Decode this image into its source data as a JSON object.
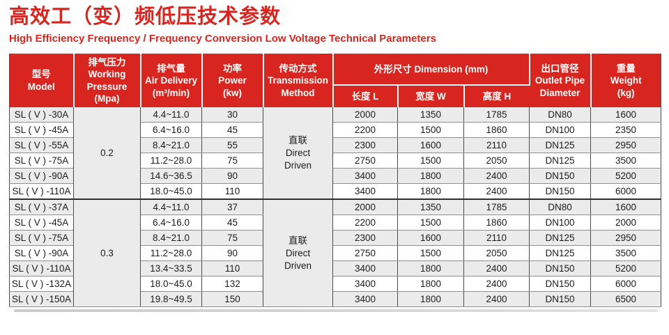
{
  "page": {
    "title_cn": "高效工（变）频低压技术参数",
    "title_en": "High Efficiency Frequency / Frequency Conversion Low Voltage Technical Parameters"
  },
  "colors": {
    "accent_red": "#d8251f",
    "header_text": "#ffffff",
    "row_alt_bg": "#ebebeb",
    "merged_cell_bg": "#e7e7e7"
  },
  "table": {
    "headers": {
      "model": "型号\nModel",
      "working_pressure": "排气压力\nWorking\nPressure\n(Mpa)",
      "air_delivery": "排气量\nAir Delivery\n(m³/min)",
      "power": "功率\nPower\n(kw)",
      "transmission": "传动方式\nTransmission\nMethod",
      "dimension": "外形尺寸 Dimension (mm)",
      "length": "长度 L",
      "width": "宽度 W",
      "height": "高度 H",
      "outlet_pipe": "出口管径\nOutlet Pipe\nDiameter",
      "weight": "重量\nWeight\n(kg)"
    },
    "groups": [
      {
        "pressure": "0.2",
        "transmission": "直联\nDirect\nDriven",
        "rows": [
          {
            "model": "SL ( V ) -30A",
            "air_delivery": "4.4~11.0",
            "power": "30",
            "length": "2000",
            "width": "1350",
            "height": "1785",
            "outlet": "DN80",
            "weight": "1600"
          },
          {
            "model": "SL ( V ) -45A",
            "air_delivery": "6.4~16.0",
            "power": "45",
            "length": "2200",
            "width": "1500",
            "height": "1860",
            "outlet": "DN100",
            "weight": "2350"
          },
          {
            "model": "SL ( V ) -55A",
            "air_delivery": "8.4~21.0",
            "power": "55",
            "length": "2300",
            "width": "1600",
            "height": "2110",
            "outlet": "DN125",
            "weight": "2950"
          },
          {
            "model": "SL ( V ) -75A",
            "air_delivery": "11.2~28.0",
            "power": "75",
            "length": "2750",
            "width": "1500",
            "height": "2050",
            "outlet": "DN125",
            "weight": "3500"
          },
          {
            "model": "SL ( V ) -90A",
            "air_delivery": "14.6~36.5",
            "power": "90",
            "length": "3400",
            "width": "1800",
            "height": "2400",
            "outlet": "DN150",
            "weight": "5200"
          },
          {
            "model": "SL ( V ) -110A",
            "air_delivery": "18.0~45.0",
            "power": "110",
            "length": "3400",
            "width": "1800",
            "height": "2400",
            "outlet": "DN150",
            "weight": "6000"
          }
        ]
      },
      {
        "pressure": "0.3",
        "transmission": "直联\nDirect\nDriven",
        "rows": [
          {
            "model": "SL ( V ) -37A",
            "air_delivery": "4.4~11.0",
            "power": "37",
            "length": "2000",
            "width": "1350",
            "height": "1785",
            "outlet": "DN80",
            "weight": "1600"
          },
          {
            "model": "SL ( V ) -45A",
            "air_delivery": "6.4~16.0",
            "power": "45",
            "length": "2200",
            "width": "1500",
            "height": "1860",
            "outlet": "DN100",
            "weight": "2000"
          },
          {
            "model": "SL ( V ) -75A",
            "air_delivery": "8.4~21.0",
            "power": "75",
            "length": "2300",
            "width": "1600",
            "height": "2110",
            "outlet": "DN125",
            "weight": "2950"
          },
          {
            "model": "SL ( V ) -90A",
            "air_delivery": "11.2~28.0",
            "power": "90",
            "length": "2750",
            "width": "1500",
            "height": "2050",
            "outlet": "DN125",
            "weight": "3500"
          },
          {
            "model": "SL ( V ) -110A",
            "air_delivery": "13.4~33.5",
            "power": "110",
            "length": "3400",
            "width": "1800",
            "height": "2400",
            "outlet": "DN150",
            "weight": "5200"
          },
          {
            "model": "SL ( V ) -132A",
            "air_delivery": "18.0~45.0",
            "power": "132",
            "length": "3400",
            "width": "1800",
            "height": "2400",
            "outlet": "DN150",
            "weight": "6000"
          },
          {
            "model": "SL ( V ) -150A",
            "air_delivery": "19.8~49.5",
            "power": "150",
            "length": "3400",
            "width": "1800",
            "height": "2400",
            "outlet": "DN150",
            "weight": "6500"
          }
        ]
      }
    ]
  }
}
